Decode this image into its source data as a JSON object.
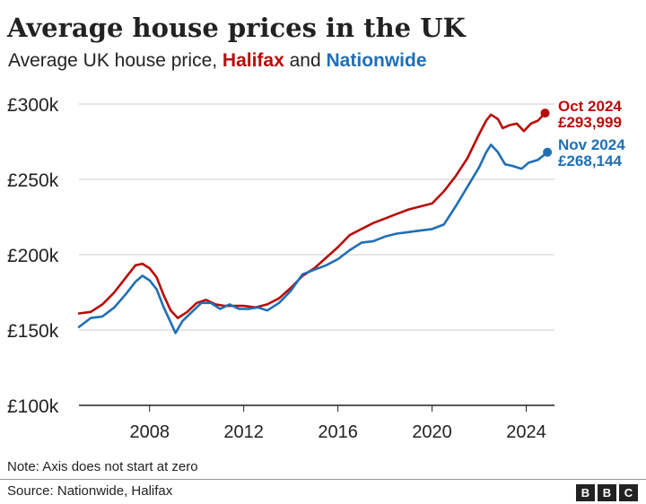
{
  "header": {
    "title": "Average house prices in the UK",
    "subtitle_prefix": "Average UK house price, ",
    "subtitle_halifax": "Halifax",
    "subtitle_and": " and ",
    "subtitle_nationwide": "Nationwide"
  },
  "footer": {
    "note": "Note: Axis does not start at zero",
    "source": "Source: Nationwide, Halifax",
    "logo_letters": [
      "B",
      "B",
      "C"
    ]
  },
  "colors": {
    "halifax": "#b80c09",
    "nationwide": "#1f6fb5",
    "grid": "#cccccc",
    "axis": "#222222"
  },
  "chart_data": {
    "type": "line",
    "title": "Average house prices in the UK",
    "subtitle": "Average UK house price, Halifax and Nationwide",
    "xlabel": "",
    "ylabel": "",
    "xlim": [
      2005.0,
      2025.2
    ],
    "ylim": [
      100000,
      300000
    ],
    "x_ticks": [
      2008,
      2012,
      2016,
      2020,
      2024
    ],
    "x_tick_labels": [
      "2008",
      "2012",
      "2016",
      "2020",
      "2024"
    ],
    "y_ticks": [
      100000,
      150000,
      200000,
      250000,
      300000
    ],
    "y_tick_labels": [
      "£100k",
      "£150k",
      "£200k",
      "£250k",
      "£300k"
    ],
    "grid": "horizontal",
    "series": [
      {
        "name": "Halifax",
        "color": "#b80c09",
        "end_label_date": "Oct 2024",
        "end_label_value": "£293,999",
        "points": [
          [
            2005.0,
            161000
          ],
          [
            2005.5,
            162000
          ],
          [
            2006.0,
            167000
          ],
          [
            2006.5,
            175000
          ],
          [
            2007.0,
            185000
          ],
          [
            2007.4,
            193000
          ],
          [
            2007.7,
            194000
          ],
          [
            2008.0,
            191000
          ],
          [
            2008.3,
            185000
          ],
          [
            2008.6,
            173000
          ],
          [
            2008.9,
            163000
          ],
          [
            2009.2,
            158000
          ],
          [
            2009.6,
            162000
          ],
          [
            2010.0,
            168000
          ],
          [
            2010.4,
            170000
          ],
          [
            2010.8,
            167000
          ],
          [
            2011.2,
            166000
          ],
          [
            2011.6,
            166000
          ],
          [
            2012.0,
            166000
          ],
          [
            2012.5,
            165000
          ],
          [
            2013.0,
            167000
          ],
          [
            2013.5,
            171000
          ],
          [
            2014.0,
            178000
          ],
          [
            2014.5,
            186000
          ],
          [
            2015.0,
            191000
          ],
          [
            2015.5,
            198000
          ],
          [
            2016.0,
            205000
          ],
          [
            2016.5,
            213000
          ],
          [
            2017.0,
            217000
          ],
          [
            2017.5,
            221000
          ],
          [
            2018.0,
            224000
          ],
          [
            2018.5,
            227000
          ],
          [
            2019.0,
            230000
          ],
          [
            2019.5,
            232000
          ],
          [
            2020.0,
            234000
          ],
          [
            2020.5,
            242000
          ],
          [
            2021.0,
            252000
          ],
          [
            2021.5,
            264000
          ],
          [
            2022.0,
            280000
          ],
          [
            2022.3,
            289000
          ],
          [
            2022.5,
            293000
          ],
          [
            2022.8,
            290000
          ],
          [
            2023.0,
            284000
          ],
          [
            2023.3,
            286000
          ],
          [
            2023.6,
            287000
          ],
          [
            2023.9,
            282000
          ],
          [
            2024.2,
            287000
          ],
          [
            2024.5,
            289000
          ],
          [
            2024.8,
            294000
          ]
        ]
      },
      {
        "name": "Nationwide",
        "color": "#1f6fb5",
        "end_label_date": "Nov 2024",
        "end_label_value": "£268,144",
        "points": [
          [
            2005.0,
            152000
          ],
          [
            2005.5,
            158000
          ],
          [
            2006.0,
            159000
          ],
          [
            2006.5,
            165000
          ],
          [
            2007.0,
            174000
          ],
          [
            2007.4,
            182000
          ],
          [
            2007.7,
            186000
          ],
          [
            2008.0,
            183000
          ],
          [
            2008.3,
            177000
          ],
          [
            2008.6,
            165000
          ],
          [
            2008.9,
            155000
          ],
          [
            2009.1,
            148000
          ],
          [
            2009.4,
            156000
          ],
          [
            2009.8,
            162000
          ],
          [
            2010.2,
            168000
          ],
          [
            2010.6,
            168000
          ],
          [
            2011.0,
            164000
          ],
          [
            2011.4,
            167000
          ],
          [
            2011.8,
            164000
          ],
          [
            2012.2,
            164000
          ],
          [
            2012.6,
            165000
          ],
          [
            2013.0,
            163000
          ],
          [
            2013.5,
            168000
          ],
          [
            2014.0,
            176000
          ],
          [
            2014.5,
            187000
          ],
          [
            2015.0,
            190000
          ],
          [
            2015.5,
            193000
          ],
          [
            2016.0,
            197000
          ],
          [
            2016.5,
            203000
          ],
          [
            2017.0,
            208000
          ],
          [
            2017.5,
            209000
          ],
          [
            2018.0,
            212000
          ],
          [
            2018.5,
            214000
          ],
          [
            2019.0,
            215000
          ],
          [
            2019.5,
            216000
          ],
          [
            2020.0,
            217000
          ],
          [
            2020.5,
            220000
          ],
          [
            2021.0,
            232000
          ],
          [
            2021.5,
            245000
          ],
          [
            2022.0,
            258000
          ],
          [
            2022.3,
            268000
          ],
          [
            2022.5,
            273000
          ],
          [
            2022.8,
            268000
          ],
          [
            2023.1,
            260000
          ],
          [
            2023.4,
            259000
          ],
          [
            2023.8,
            257000
          ],
          [
            2024.1,
            261000
          ],
          [
            2024.5,
            263000
          ],
          [
            2024.9,
            268000
          ]
        ]
      }
    ]
  }
}
